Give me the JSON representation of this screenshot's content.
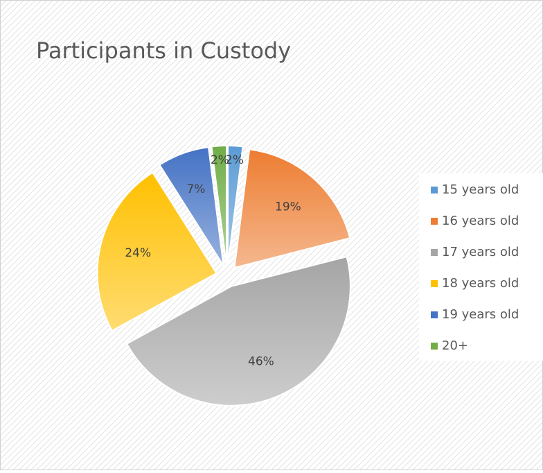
{
  "chart_data": {
    "type": "pie",
    "title": "Participants in Custody",
    "categories": [
      "15 years old",
      "16 years old",
      "17 years old",
      "18 years old",
      "19 years old",
      "20+"
    ],
    "values": [
      2,
      19,
      46,
      24,
      7,
      2
    ],
    "value_labels": [
      "2%",
      "19%",
      "46%",
      "24%",
      "7%",
      "2%"
    ],
    "colors": [
      "#5b9bd5",
      "#ed7d31",
      "#a5a5a5",
      "#ffc000",
      "#4472c4",
      "#70ad47"
    ],
    "legend": "right"
  }
}
